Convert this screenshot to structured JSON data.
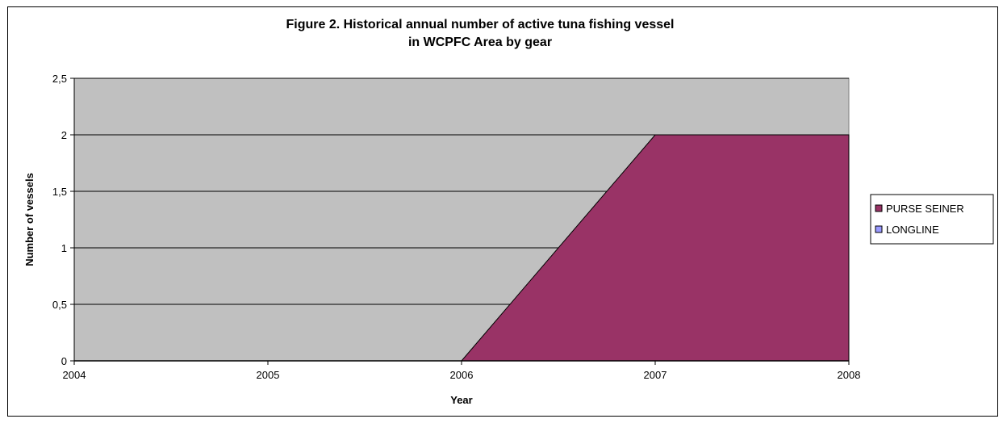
{
  "chart_data": {
    "type": "area",
    "title_lines": [
      "Figure 2. Historical annual number of active tuna fishing vessel",
      "in WCPFC Area by gear"
    ],
    "xlabel": "Year",
    "ylabel": "Number of vessels",
    "x": [
      2004,
      2005,
      2006,
      2007,
      2008
    ],
    "x_tick_labels": [
      "2004",
      "2005",
      "2006",
      "2007",
      "2008"
    ],
    "y_tick_labels": [
      "0",
      "0,5",
      "1",
      "1,5",
      "2",
      "2,5"
    ],
    "y_ticks": [
      0,
      0.5,
      1,
      1.5,
      2,
      2.5
    ],
    "ylim": [
      0,
      2.5
    ],
    "xlim": [
      2004,
      2008
    ],
    "stacked": true,
    "grid": "horizontal",
    "legend_position": "right",
    "series": [
      {
        "name": "LONGLINE",
        "values": [
          0,
          0,
          0,
          0,
          0
        ],
        "color": "#9999ff"
      },
      {
        "name": "PURSE SEINER",
        "values": [
          0,
          0,
          0,
          2,
          2
        ],
        "color": "#993366"
      }
    ],
    "legend_order": [
      "PURSE SEINER",
      "LONGLINE"
    ],
    "plot_background": "#c0c0c0"
  }
}
